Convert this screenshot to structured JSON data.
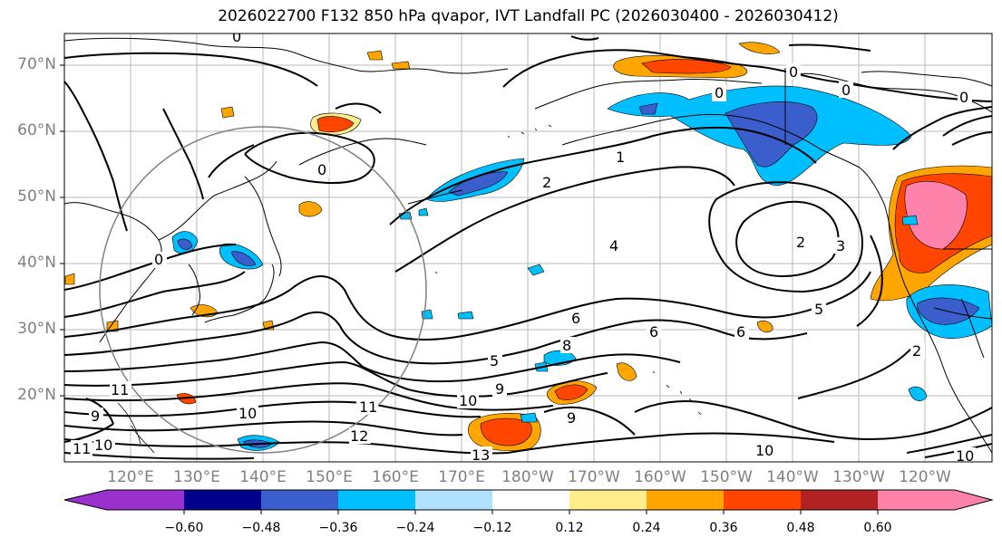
{
  "title": "2026022700 F132 850 hPa qvapor, IVT Landfall PC (2026030400 - 2026030412)",
  "lat_labels": [
    "70°N",
    "60°N",
    "50°N",
    "40°N",
    "30°N",
    "20°N"
  ],
  "lon_labels": [
    "120°E",
    "130°E",
    "140°E",
    "150°E",
    "160°E",
    "170°E",
    "180°W",
    "170°W",
    "160°W",
    "150°W",
    "140°W",
    "130°W",
    "120°W"
  ],
  "colorbar": {
    "ticks": [
      "−0.60",
      "−0.48",
      "−0.36",
      "−0.24",
      "−0.12",
      "0.12",
      "0.24",
      "0.36",
      "0.48",
      "0.60"
    ],
    "colors": [
      "#9932cc",
      "#00008b",
      "#3a5fcd",
      "#00bfff",
      "#b0e2ff",
      "#ffffff",
      "#ffec8b",
      "#ffa500",
      "#ff4500",
      "#b22222",
      "#ff82ab"
    ],
    "extend": "both"
  },
  "contour_labels": [
    "0",
    "0",
    "0",
    "0",
    "0",
    "0",
    "1",
    "2",
    "2",
    "3",
    "4",
    "5",
    "6",
    "6",
    "6",
    "8",
    "5",
    "9",
    "10",
    "10",
    "10",
    "11",
    "11",
    "12",
    "13",
    "9",
    "9",
    "10",
    "11",
    "2",
    "0",
    "10"
  ]
}
